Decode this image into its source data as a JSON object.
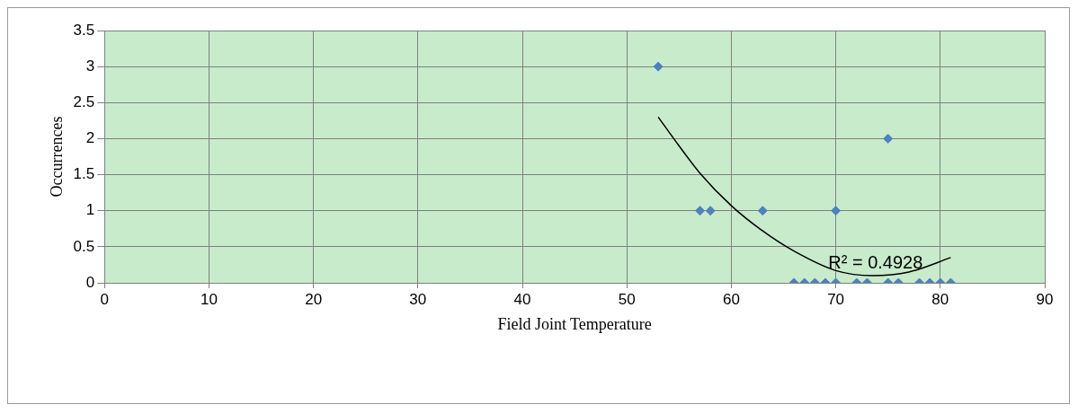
{
  "chart_data": {
    "type": "scatter",
    "xlabel": "Field Joint Temperature",
    "ylabel": "Occurrences",
    "xlim": [
      0,
      90
    ],
    "xticks": [
      0,
      10,
      20,
      30,
      40,
      50,
      60,
      70,
      80,
      90
    ],
    "ylim": [
      0,
      3.5
    ],
    "yticks": [
      0,
      0.5,
      1,
      1.5,
      2,
      2.5,
      3,
      3.5
    ],
    "grid": true,
    "legend": false,
    "marker": "diamond",
    "series": [
      {
        "color": "#4f81bd",
        "x": [
          53,
          57,
          58,
          63,
          70,
          75,
          66,
          67,
          68,
          69,
          70,
          72,
          73,
          75,
          76,
          78,
          79,
          80,
          81
        ],
        "values": [
          3,
          1,
          1,
          1,
          1,
          2,
          0,
          0,
          0,
          0,
          0,
          0,
          0,
          0,
          0,
          0,
          0,
          0,
          0
        ]
      },
      {
        "type": "line",
        "color": "#000000",
        "marker": "none",
        "x": [
          53,
          55,
          57,
          60,
          63,
          66,
          70,
          73.5,
          77,
          81
        ],
        "values": [
          2.3,
          1.9,
          1.52,
          1.07,
          0.72,
          0.44,
          0.17,
          0.1,
          0.15,
          0.35
        ]
      }
    ],
    "annotations": [
      "R² = 0.4928"
    ]
  }
}
